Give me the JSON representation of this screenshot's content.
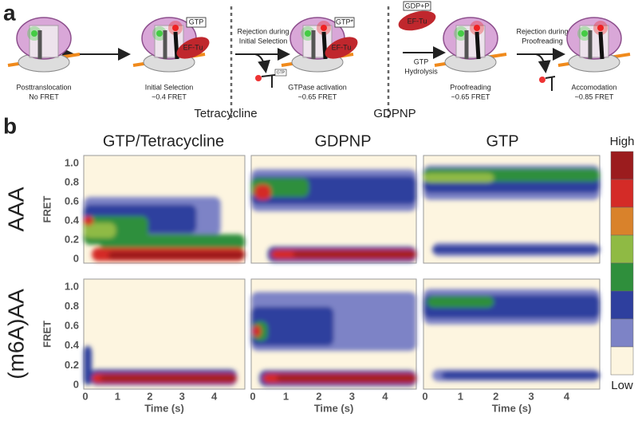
{
  "panel_a": {
    "label": "a",
    "steps": [
      {
        "label": "Posttranslocation",
        "sub": "No FRET"
      },
      {
        "label": "Initial Selection",
        "sub": "~0.4 FRET"
      },
      {
        "label": "GTPase activation",
        "sub": "~0.65 FRET"
      },
      {
        "label": "Proofreading",
        "sub": "~0.65 FRET"
      },
      {
        "label": "Accomodation",
        "sub": "~0.85 FRET"
      }
    ],
    "transitions": [
      {
        "line1": "Rejection during",
        "line2": "Initial Selection"
      },
      {
        "line1": "GTP",
        "line2": "Hydrolysis"
      },
      {
        "line1": "Rejection during",
        "line2": "Proofreading"
      }
    ],
    "molecules": {
      "gtp": "GTP",
      "eftu": "EF-Tu",
      "gtp_star": "GTP*",
      "gdp": "GDP+P",
      "gtp_small": "GTP"
    },
    "conditions": [
      "Tetracycline",
      "GDPNP"
    ]
  },
  "panel_b": {
    "label": "b",
    "columns": [
      "GTP/Tetracycline",
      "GDPNP",
      "GTP"
    ],
    "rows": [
      "AAA",
      "(m6A)AA"
    ],
    "y_axis_label": "FRET",
    "y_ticks": [
      "1.0",
      "0.8",
      "0.6",
      "0.4",
      "0.2",
      "0"
    ],
    "x_axis_label": "Time (s)",
    "x_ticks": [
      "0",
      "1",
      "2",
      "3",
      "4"
    ],
    "colorbar": {
      "high": "High",
      "low": "Low",
      "colors": [
        "#9b1c1e",
        "#d42b27",
        "#d9822b",
        "#8fba44",
        "#2f8f3c",
        "#2e3f9e",
        "#7d83c6",
        "#fdf5e0"
      ]
    }
  }
}
